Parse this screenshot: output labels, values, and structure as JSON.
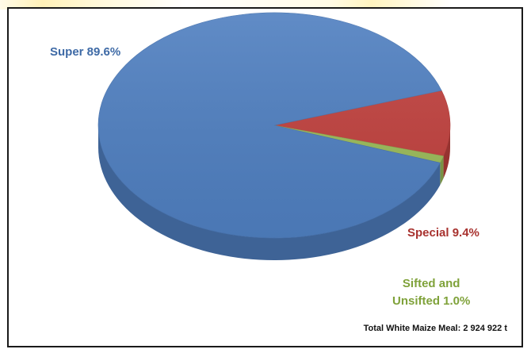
{
  "chart_data": {
    "type": "pie",
    "slices": [
      {
        "name": "Super",
        "value": 89.6,
        "label": "Super  89.6%",
        "color": "#4f7fc0"
      },
      {
        "name": "Special",
        "value": 9.4,
        "label": "Special  9.4%",
        "color": "#c0413e"
      },
      {
        "name": "Sifted and Unsifted",
        "value": 1.0,
        "label_line1": "Sifted and",
        "label_line2": "Unsifted 1.0%",
        "color": "#9bbb59"
      }
    ],
    "annotation": "Total White Maize Meal: 2 924 922 t"
  }
}
